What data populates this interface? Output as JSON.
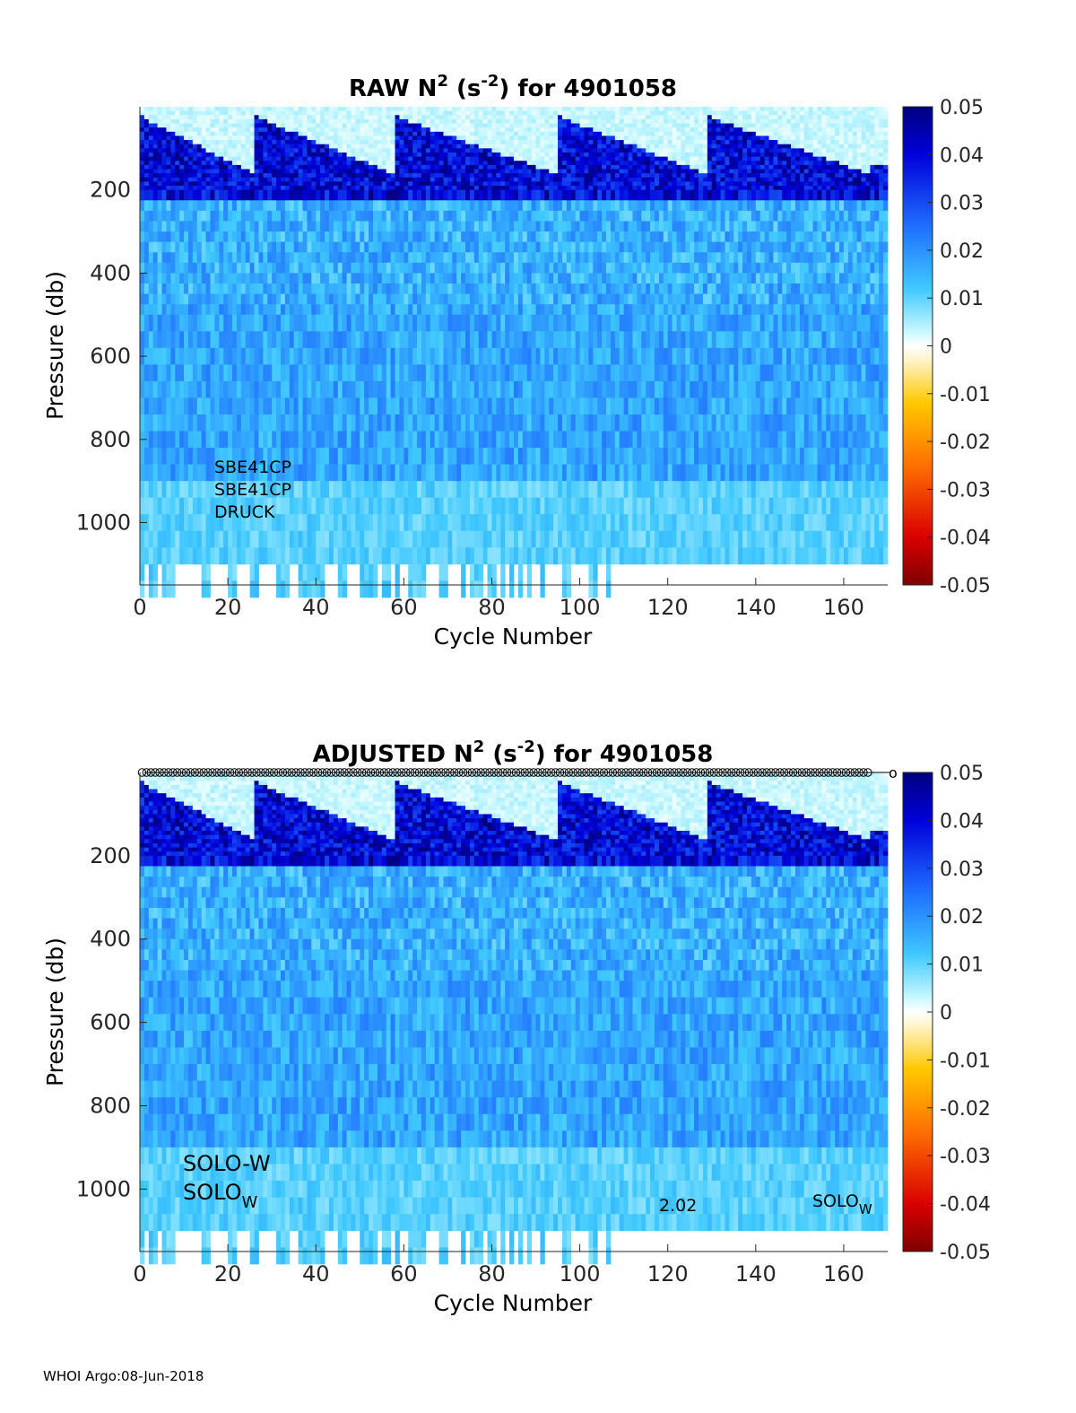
{
  "footer": "WHOI Argo:08-Jun-2018",
  "chart_data": [
    {
      "type": "heatmap",
      "title_prefix": "RAW N",
      "title_exp1": "2",
      "title_mid": " (s",
      "title_exp2": "-2",
      "title_suffix": ") for 4901058",
      "xlabel": "Cycle Number",
      "ylabel": "Pressure (db)",
      "xlim": [
        0,
        170
      ],
      "ylim": [
        1150,
        0
      ],
      "xticks": [
        0,
        20,
        40,
        60,
        80,
        100,
        120,
        140,
        160
      ],
      "yticks": [
        200,
        400,
        600,
        800,
        1000
      ],
      "clim": [
        -0.05,
        0.05
      ],
      "colorbar_ticks": [
        "0.05",
        "0.04",
        "0.03",
        "0.02",
        "0.01",
        "0",
        "-0.01",
        "-0.02",
        "-0.03",
        "-0.04",
        "-0.05"
      ],
      "colorbar_values": [
        0.05,
        0.04,
        0.03,
        0.02,
        0.01,
        0,
        -0.01,
        -0.02,
        -0.03,
        -0.04,
        -0.05
      ],
      "sensor_labels": [
        "SBE41CP",
        "SBE41CP",
        "DRUCK"
      ],
      "bottom_pressure": 1100,
      "mixed_layer_peak_cycles": [
        1,
        27,
        59,
        96,
        130,
        167
      ],
      "markers": false
    },
    {
      "type": "heatmap",
      "title_prefix": "ADJUSTED N",
      "title_exp1": "2",
      "title_mid": " (s",
      "title_exp2": "-2",
      "title_suffix": ") for 4901058",
      "xlabel": "Cycle Number",
      "ylabel": "Pressure (db)",
      "xlim": [
        0,
        170
      ],
      "ylim": [
        1150,
        0
      ],
      "xticks": [
        0,
        20,
        40,
        60,
        80,
        100,
        120,
        140,
        160
      ],
      "yticks": [
        200,
        400,
        600,
        800,
        1000
      ],
      "clim": [
        -0.05,
        0.05
      ],
      "colorbar_ticks": [
        "0.05",
        "0.04",
        "0.03",
        "0.02",
        "0.01",
        "0",
        "-0.01",
        "-0.02",
        "-0.03",
        "-0.04",
        "-0.05"
      ],
      "colorbar_values": [
        0.05,
        0.04,
        0.03,
        0.02,
        0.01,
        0,
        -0.01,
        -0.02,
        -0.03,
        -0.04,
        -0.05
      ],
      "float_labels": [
        "SOLO-W"
      ],
      "float_label_base": "SOLO",
      "float_label_sub": "W",
      "version_label": "2.02",
      "bottom_pressure": 1100,
      "mixed_layer_peak_cycles": [
        1,
        27,
        59,
        96,
        130,
        167
      ],
      "markers": true,
      "marker_row_pressure": 0,
      "marker_cycle_range": [
        1,
        166
      ],
      "marker_end_label": "o"
    }
  ]
}
